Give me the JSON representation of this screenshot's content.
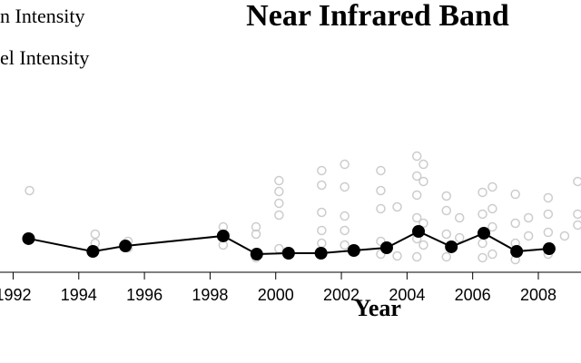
{
  "chart_data": {
    "type": "line",
    "title": "Near Infrared Band",
    "x_label": "Year",
    "xlim": [
      1991.6,
      2009.3
    ],
    "xticks": [
      1992,
      1994,
      1996,
      1998,
      2000,
      2002,
      2004,
      2006,
      2008
    ],
    "ylim": [
      0,
      10
    ],
    "series": [
      {
        "name": "n Intensity",
        "type": "line",
        "color": "#000000",
        "x": [
          1992.47,
          1994.43,
          1995.42,
          1998.4,
          1999.42,
          2000.39,
          2001.38,
          2002.38,
          2003.38,
          2004.35,
          2005.35,
          2006.34,
          2007.34,
          2008.33
        ],
        "values": [
          2.47,
          1.53,
          1.93,
          2.67,
          1.33,
          1.4,
          1.4,
          1.6,
          1.8,
          3.0,
          1.87,
          2.87,
          1.53,
          1.73
        ]
      },
      {
        "name": "el Intensity",
        "type": "scatter",
        "color": "#cccccc",
        "x": [
          1992.5,
          1994.5,
          1994.5,
          1994.5,
          1995.5,
          1995.5,
          1998.4,
          1998.4,
          1999.4,
          1999.4,
          1999.4,
          2000.1,
          2000.1,
          2000.1,
          2000.1,
          2000.1,
          2000.4,
          2001.4,
          2001.4,
          2001.4,
          2001.4,
          2001.4,
          2002.1,
          2002.1,
          2002.1,
          2002.1,
          2002.1,
          2003.2,
          2003.2,
          2003.2,
          2003.2,
          2003.2,
          2003.7,
          2003.7,
          2004.3,
          2004.3,
          2004.3,
          2004.3,
          2004.3,
          2004.3,
          2004.5,
          2004.5,
          2004.5,
          2004.5,
          2005.2,
          2005.2,
          2005.2,
          2005.2,
          2005.6,
          2005.6,
          2006.3,
          2006.3,
          2006.3,
          2006.3,
          2006.6,
          2006.6,
          2006.6,
          2006.6,
          2007.3,
          2007.3,
          2007.3,
          2007.3,
          2007.7,
          2007.7,
          2008.3,
          2008.3,
          2008.3,
          2008.3,
          2008.8,
          2009.2,
          2009.2,
          2009.2
        ],
        "values": [
          6.0,
          2.8,
          2.13,
          1.6,
          2.27,
          1.8,
          3.33,
          2.0,
          3.33,
          2.8,
          1.07,
          4.2,
          6.73,
          5.93,
          5.07,
          1.73,
          1.27,
          7.47,
          6.4,
          4.4,
          3.07,
          2.13,
          7.93,
          6.27,
          4.13,
          3.07,
          2.0,
          7.47,
          6.0,
          4.67,
          2.27,
          1.33,
          4.8,
          1.2,
          8.53,
          7.07,
          5.67,
          4.0,
          2.47,
          1.13,
          7.93,
          6.67,
          3.6,
          2.0,
          5.6,
          4.53,
          2.8,
          1.13,
          4.0,
          2.53,
          5.87,
          4.27,
          2.13,
          1.07,
          6.27,
          4.67,
          3.33,
          1.33,
          5.73,
          3.6,
          2.13,
          0.93,
          4.0,
          2.67,
          5.47,
          4.27,
          2.93,
          1.33,
          2.67,
          6.67,
          4.27,
          3.47
        ]
      }
    ]
  }
}
